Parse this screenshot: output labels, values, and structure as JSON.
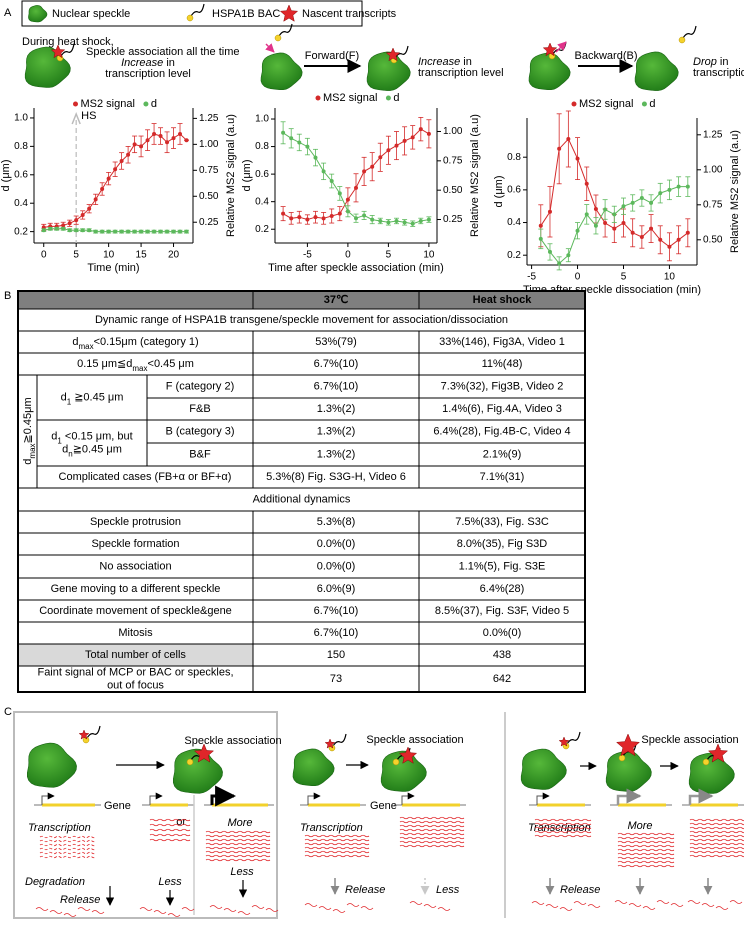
{
  "panel_a": {
    "label": "A",
    "legend": [
      "Nuclear speckle",
      "HSPA1B BAC",
      "Nascent transcripts"
    ],
    "scheme_1": {
      "intro": "During heat shock,",
      "text": "Speckle association all the time",
      "effect": "Increase",
      "effect_tail": " in",
      "effect_line2": "transcription level"
    },
    "scheme_2": {
      "step": "Forward(F)",
      "effect": "Increase",
      "effect_tail": " in",
      "effect_line2": "transcription level"
    },
    "scheme_3": {
      "step": "Backward(B)",
      "effect": "Drop",
      "effect_tail": " in",
      "effect_line2": "transcription level"
    }
  },
  "chart_data": [
    {
      "type": "line",
      "xlabel": "Time (min)",
      "ylabel": "d (μm)",
      "y2label": "Relative MS2 signal (a.u)",
      "x": [
        0,
        1,
        2,
        3,
        4,
        5,
        6,
        7,
        8,
        9,
        10,
        11,
        12,
        13,
        14,
        15,
        16,
        17,
        18,
        19,
        20,
        21,
        22
      ],
      "xlim": [
        -1.5,
        23
      ],
      "xticks": [
        0,
        5,
        10,
        15,
        20
      ],
      "ylim": [
        0.12,
        1.07
      ],
      "yticks": [
        0.2,
        0.4,
        0.6,
        0.8,
        {
          "value": 1,
          "label": "1.0"
        }
      ],
      "y2lim": [
        0.05,
        1.35
      ],
      "y2ticks": [
        0.25,
        {
          "value": 0.5,
          "label": "0.50"
        },
        0.75,
        {
          "value": 1,
          "label": "1.00"
        },
        1.25
      ],
      "legend_position": "top",
      "annotations": [
        {
          "text": "HS",
          "x": 5
        }
      ],
      "series": [
        {
          "name": "MS2 signal",
          "color": "#d42a2a",
          "axis": "y2",
          "values": [
            0.2,
            0.21,
            0.21,
            0.22,
            0.24,
            0.27,
            0.32,
            0.38,
            0.47,
            0.57,
            0.67,
            0.76,
            0.84,
            0.9,
            1.0,
            0.98,
            1.04,
            1.1,
            1.08,
            1.02,
            1.06,
            1.1,
            1.04
          ],
          "errors": [
            0.03,
            0.03,
            0.03,
            0.03,
            0.03,
            0.04,
            0.04,
            0.04,
            0.05,
            0.06,
            0.06,
            0.07,
            0.08,
            0.08,
            0.08,
            0.1,
            0.1,
            0.1,
            0.08,
            0.1,
            0.1,
            0.1,
            0
          ]
        },
        {
          "name": "d",
          "color": "#5cb85c",
          "values": [
            0.21,
            0.22,
            0.22,
            0.22,
            0.21,
            0.21,
            0.21,
            0.21,
            0.2,
            0.2,
            0.2,
            0.2,
            0.2,
            0.2,
            0.2,
            0.2,
            0.2,
            0.2,
            0.2,
            0.2,
            0.2,
            0.2,
            0.2
          ],
          "errors": [
            0.01,
            0.01,
            0.01,
            0.01,
            0.01,
            0.01,
            0.01,
            0.01,
            0.01,
            0.01,
            0.01,
            0.01,
            0.01,
            0.01,
            0.01,
            0.01,
            0.01,
            0.01,
            0.01,
            0.01,
            0.01,
            0.01,
            0.01
          ]
        }
      ]
    },
    {
      "type": "line",
      "xlabel": "Time after speckle association (min)",
      "ylabel": "d (μm)",
      "y2label": "Relative MS2 signal (a.u)",
      "x": [
        -8,
        -7,
        -6,
        -5,
        -4,
        -3,
        -2,
        -1,
        0,
        1,
        2,
        3,
        4,
        5,
        6,
        7,
        8,
        9,
        10
      ],
      "xlim": [
        -9,
        11
      ],
      "xticks": [
        -5,
        0,
        5,
        10
      ],
      "ylim": [
        0.1,
        1.08
      ],
      "yticks": [
        0.2,
        0.4,
        0.6,
        0.8,
        {
          "value": 1,
          "label": "1.0"
        }
      ],
      "y2lim": [
        0.05,
        1.2
      ],
      "y2ticks": [
        0.25,
        {
          "value": 0.5,
          "label": "0.50"
        },
        0.75,
        {
          "value": 1,
          "label": "1.00"
        }
      ],
      "legend_position": "top",
      "series": [
        {
          "name": "MS2 signal",
          "color": "#d42a2a",
          "axis": "y2",
          "values": [
            0.3,
            0.26,
            0.27,
            0.25,
            0.27,
            0.26,
            0.28,
            0.3,
            0.42,
            0.52,
            0.66,
            0.7,
            0.78,
            0.84,
            0.88,
            0.92,
            0.95,
            1.02,
            0.98
          ],
          "errors": [
            0.06,
            0.05,
            0.05,
            0.04,
            0.05,
            0.05,
            0.06,
            0.06,
            0.1,
            0.12,
            0.12,
            0.12,
            0.12,
            0.12,
            0.12,
            0.12,
            0.1,
            0.1,
            0.12
          ]
        },
        {
          "name": "d",
          "color": "#5cb85c",
          "values": [
            0.9,
            0.86,
            0.83,
            0.8,
            0.72,
            0.62,
            0.55,
            0.46,
            0.33,
            0.28,
            0.3,
            0.27,
            0.26,
            0.25,
            0.26,
            0.25,
            0.24,
            0.26,
            0.27
          ],
          "errors": [
            0.08,
            0.07,
            0.06,
            0.06,
            0.06,
            0.06,
            0.05,
            0.05,
            0.04,
            0.03,
            0.03,
            0.03,
            0.02,
            0.02,
            0.02,
            0.02,
            0.02,
            0.02,
            0.02
          ]
        }
      ]
    },
    {
      "type": "line",
      "xlabel": "Time after speckle dissociation (min)",
      "ylabel": "d (μm)",
      "y2label": "Relative MS2 signal (a.u)",
      "x": [
        -4,
        -3,
        -2,
        -1,
        0,
        1,
        2,
        3,
        4,
        5,
        6,
        7,
        8,
        9,
        10,
        11,
        12
      ],
      "xlim": [
        -5.5,
        13
      ],
      "xticks": [
        -5,
        0,
        5,
        10
      ],
      "ylim": [
        0.14,
        1.04
      ],
      "yticks": [
        0.2,
        0.4,
        0.6,
        0.8
      ],
      "y2lim": [
        0.32,
        1.37
      ],
      "y2ticks": [
        {
          "value": 0.5,
          "label": "0.50"
        },
        0.75,
        {
          "value": 1,
          "label": "1.00"
        },
        1.25
      ],
      "legend_position": "top",
      "series": [
        {
          "name": "MS2 signal",
          "color": "#d42a2a",
          "axis": "y2",
          "values": [
            0.6,
            0.7,
            1.15,
            1.22,
            1.08,
            0.9,
            0.72,
            0.62,
            0.58,
            0.62,
            0.55,
            0.52,
            0.58,
            0.5,
            0.45,
            0.5,
            0.55
          ],
          "errors": [
            0.15,
            0.18,
            0.25,
            0.2,
            0.15,
            0.12,
            0.1,
            0.1,
            0.1,
            0.1,
            0.1,
            0.08,
            0.1,
            0.1,
            0.1,
            0.1,
            0.1
          ]
        },
        {
          "name": "d",
          "color": "#5cb85c",
          "values": [
            0.3,
            0.22,
            0.15,
            0.2,
            0.35,
            0.45,
            0.38,
            0.48,
            0.45,
            0.5,
            0.52,
            0.55,
            0.52,
            0.58,
            0.6,
            0.62,
            0.62
          ],
          "errors": [
            0.06,
            0.05,
            0.04,
            0.04,
            0.05,
            0.06,
            0.05,
            0.06,
            0.05,
            0.05,
            0.05,
            0.05,
            0.05,
            0.06,
            0.06,
            0.06,
            0.06
          ]
        }
      ]
    }
  ],
  "panel_b": {
    "label": "B",
    "header": [
      "37℃",
      "Heat shock"
    ],
    "section_1": "Dynamic range of HSPA1B transgene/speckle movement for association/dissociation",
    "rows_top": [
      {
        "label": [
          [
            "d",
            "max",
            "<0.15μm (category 1)"
          ]
        ],
        "cells": [
          "53%(79)",
          "33%(146), Fig3A, Video 1"
        ]
      },
      {
        "label": [
          [
            "0.15 μm≦d",
            "max",
            "<0.45 μm"
          ]
        ],
        "cells": [
          "6.7%(10)",
          "11%(48)"
        ]
      }
    ],
    "group": {
      "label": [
        [
          "d",
          "max",
          "≧0.45μm"
        ]
      ],
      "subgroups": [
        {
          "label": [
            [
              "d",
              "1",
              " ≧0.45 μm"
            ]
          ],
          "rows": [
            {
              "label": [
                [
                  "F (category 2)"
                ]
              ],
              "cells": [
                "6.7%(10)",
                "7.3%(32), Fig3B, Video 2"
              ]
            },
            {
              "label": [
                [
                  "F&B"
                ]
              ],
              "cells": [
                "1.3%(2)",
                "1.4%(6), Fig.4A, Video 3"
              ]
            }
          ]
        },
        {
          "label": [
            [
              "d",
              "1",
              " <0.15 μm, but"
            ],
            [
              "d",
              "n",
              "≧0.45 μm"
            ]
          ],
          "rows": [
            {
              "label": [
                [
                  "B (category 3)"
                ]
              ],
              "cells": [
                "1.3%(2)",
                "6.4%(28), Fig.4B-C, Video 4"
              ]
            },
            {
              "label": [
                [
                  "B&F"
                ]
              ],
              "cells": [
                "1.3%(2)",
                "2.1%(9)"
              ]
            }
          ]
        }
      ],
      "complicated": {
        "label": [
          [
            "Complicated cases (FB+α or BF+α)"
          ]
        ],
        "cells": [
          "5.3%(8) Fig. S3G-H, Video 6",
          "7.1%(31)"
        ]
      }
    },
    "section_2": "Additional dynamics",
    "rows_bottom": [
      {
        "label": [
          [
            "Speckle protrusion"
          ]
        ],
        "cells": [
          "5.3%(8)",
          "7.5%(33), Fig. S3C"
        ]
      },
      {
        "label": [
          [
            "Speckle formation"
          ]
        ],
        "cells": [
          "0.0%(0)",
          "8.0%(35), Fig S3D"
        ]
      },
      {
        "label": [
          [
            "No association"
          ]
        ],
        "cells": [
          "0.0%(0)",
          "1.1%(5), Fig. S3E"
        ]
      },
      {
        "label": [
          [
            "Gene moving to a different speckle"
          ]
        ],
        "cells": [
          "6.0%(9)",
          "6.4%(28)"
        ]
      },
      {
        "label": [
          [
            "Coordinate movement of speckle&gene"
          ]
        ],
        "cells": [
          "6.7%(10)",
          "8.5%(37), Fig. S3F, Video 5"
        ]
      },
      {
        "label": [
          [
            "Mitosis"
          ]
        ],
        "cells": [
          "6.7%(10)",
          "0.0%(0)"
        ]
      },
      {
        "label": [
          [
            "Total number of cells"
          ]
        ],
        "cells": [
          "150",
          "438"
        ]
      },
      {
        "label": [
          [
            "Faint signal of MCP or BAC or speckles,"
          ],
          [
            "out of focus"
          ]
        ],
        "cells": [
          "73",
          "642"
        ]
      }
    ]
  },
  "panel_c": {
    "label": "C",
    "scheme_1": {
      "title": "Speckle association",
      "gene": "Gene",
      "transcription": "Transcription",
      "or": "or",
      "more": "More",
      "degradation": "Degradation",
      "less_1": "Less",
      "less_2": "Less",
      "release": "Release"
    },
    "scheme_2": {
      "title": "Speckle association",
      "gene": "Gene",
      "transcription": "Transcription",
      "release": "Release",
      "less": "Less"
    },
    "scheme_3": {
      "title": "Speckle association",
      "transcription": "Transcription",
      "more": "More",
      "release": "Release"
    }
  }
}
